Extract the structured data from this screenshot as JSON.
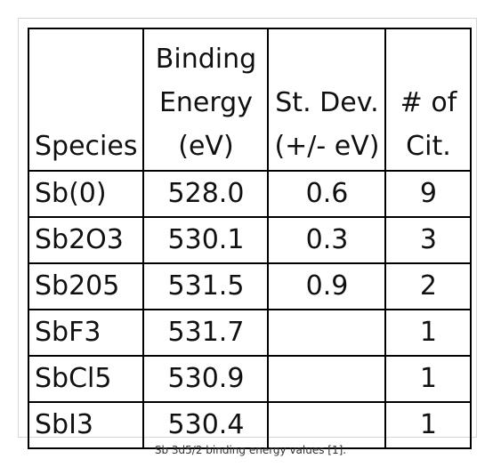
{
  "table": {
    "headers": {
      "species": [
        "Species"
      ],
      "energy": [
        "Binding",
        "Energy",
        "(eV)"
      ],
      "dev": [
        "St. Dev.",
        "(+/- eV)"
      ],
      "cit": [
        "# of",
        "Cit."
      ]
    },
    "rows": [
      {
        "species": "Sb(0)",
        "energy": "528.0",
        "dev": "0.6",
        "cit": "9"
      },
      {
        "species": "Sb2O3",
        "energy": "530.1",
        "dev": "0.3",
        "cit": "3"
      },
      {
        "species": "Sb205",
        "energy": "531.5",
        "dev": "0.9",
        "cit": "2"
      },
      {
        "species": "SbF3",
        "energy": "531.7",
        "dev": "",
        "cit": "1"
      },
      {
        "species": "SbCl5",
        "energy": "530.9",
        "dev": "",
        "cit": "1"
      },
      {
        "species": "SbI3",
        "energy": "530.4",
        "dev": "",
        "cit": "1"
      }
    ]
  },
  "caption": "Sb 3d5/2 binding energy values [1]."
}
